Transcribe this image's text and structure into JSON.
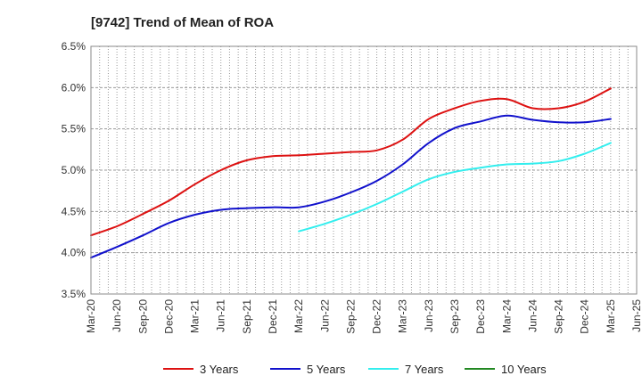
{
  "chart_data": {
    "type": "line",
    "title": "[9742]  Trend of Mean of ROA",
    "xlabel": "",
    "ylabel": "",
    "ylim": [
      3.5,
      6.5
    ],
    "yticks": [
      "3.5%",
      "4.0%",
      "4.5%",
      "5.0%",
      "5.5%",
      "6.0%",
      "6.5%"
    ],
    "ytick_values": [
      3.5,
      4.0,
      4.5,
      5.0,
      5.5,
      6.0,
      6.5
    ],
    "categories": [
      "Mar-20",
      "Jun-20",
      "Sep-20",
      "Dec-20",
      "Mar-21",
      "Jun-21",
      "Sep-21",
      "Dec-21",
      "Mar-22",
      "Jun-22",
      "Sep-22",
      "Dec-22",
      "Mar-23",
      "Jun-23",
      "Sep-23",
      "Dec-23",
      "Mar-24",
      "Jun-24",
      "Sep-24",
      "Dec-24",
      "Mar-25",
      "Jun-25"
    ],
    "grid": true,
    "legend_position": "bottom",
    "series": [
      {
        "name": "3 Years",
        "color": "#dd1111",
        "values": [
          4.21,
          4.32,
          4.47,
          4.63,
          4.83,
          5.0,
          5.12,
          5.17,
          5.18,
          5.2,
          5.22,
          5.24,
          5.37,
          5.62,
          5.75,
          5.84,
          5.86,
          5.75,
          5.75,
          5.83,
          5.99,
          null
        ]
      },
      {
        "name": "5 Years",
        "color": "#1111cc",
        "values": [
          3.94,
          4.07,
          4.21,
          4.36,
          4.46,
          4.52,
          4.54,
          4.55,
          4.55,
          4.62,
          4.73,
          4.87,
          5.07,
          5.33,
          5.51,
          5.59,
          5.66,
          5.61,
          5.58,
          5.58,
          5.62,
          null
        ]
      },
      {
        "name": "7 Years",
        "color": "#33eeee",
        "values": [
          null,
          null,
          null,
          null,
          null,
          null,
          null,
          null,
          4.26,
          4.35,
          4.46,
          4.59,
          4.74,
          4.89,
          4.98,
          5.03,
          5.07,
          5.08,
          5.11,
          5.2,
          5.33,
          null
        ]
      },
      {
        "name": "10 Years",
        "color": "#228822",
        "values": [
          null,
          null,
          null,
          null,
          null,
          null,
          null,
          null,
          null,
          null,
          null,
          null,
          null,
          null,
          null,
          null,
          null,
          null,
          null,
          null,
          null,
          null
        ]
      }
    ]
  }
}
